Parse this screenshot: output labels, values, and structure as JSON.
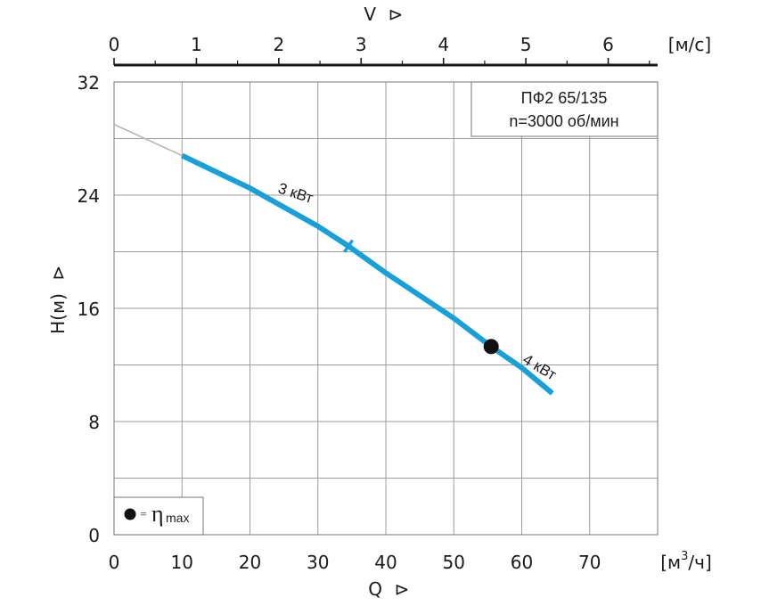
{
  "chart_data": {
    "type": "line",
    "info_box": {
      "model": "ПФ2 65/135",
      "speed": "n=3000 об/мин"
    },
    "x_axis": {
      "label": "Q",
      "arrow": "⊳",
      "unit_prefix": "[м",
      "unit_sup": "3",
      "unit_suffix": "/ч]",
      "range": [
        0,
        80
      ],
      "ticks": [
        0,
        10,
        20,
        30,
        40,
        50,
        60,
        70
      ]
    },
    "y_axis": {
      "label": "H(м)",
      "arrow": "⊳",
      "range": [
        0,
        32
      ],
      "ticks": [
        0,
        8,
        16,
        24,
        32
      ]
    },
    "top_axis": {
      "label": "V",
      "arrow": "⊳",
      "unit": "[м/с]",
      "range": [
        0,
        6.6
      ],
      "ticks": [
        0,
        1,
        2,
        3,
        4,
        5,
        6
      ]
    },
    "grid": true,
    "series": [
      {
        "x": [
          10,
          20,
          30,
          34.5,
          40,
          50,
          55.5,
          60,
          64.5
        ],
        "y": [
          26.8,
          24.5,
          21.8,
          20.4,
          18.5,
          15.3,
          13.3,
          11.8,
          10.0
        ],
        "color": "#1aa0d8"
      }
    ],
    "extrapolation": {
      "x": [
        0,
        10
      ],
      "y": [
        29.0,
        26.8
      ],
      "color": "#b5b5b5"
    },
    "annotations": [
      {
        "text": "3 кВт",
        "x": 24,
        "y": 24.2
      },
      {
        "text": "4 кВт",
        "x": 60,
        "y": 12.2
      }
    ],
    "marker_break": {
      "x": 34.5,
      "y": 20.4
    },
    "max_efficiency_point": {
      "x": 55.5,
      "y": 13.3
    },
    "legend": {
      "placement": "bottom-left",
      "text_eq": "=",
      "symbol": "η",
      "subscript": "max"
    }
  }
}
